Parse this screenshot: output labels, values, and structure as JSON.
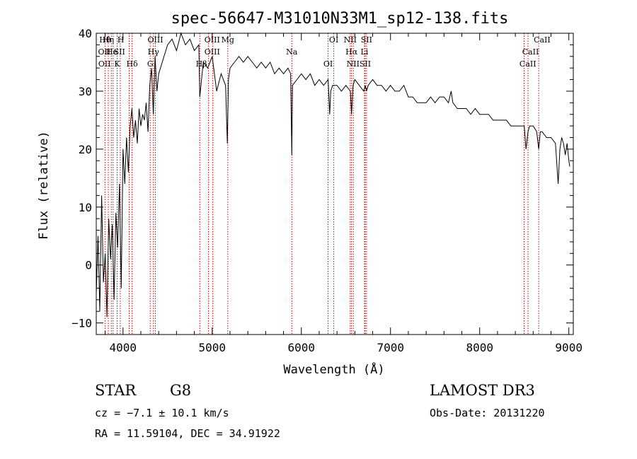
{
  "chart_data": {
    "type": "line",
    "title": "spec-56647-M31010N33M1_sp12-138.fits",
    "xlabel": "Wavelength (Å)",
    "ylabel": "Flux (relative)",
    "xlim": [
      3700,
      9050
    ],
    "ylim": [
      -12,
      40
    ],
    "x_ticks": [
      4000,
      5000,
      6000,
      7000,
      8000,
      9000
    ],
    "x_tick_labels": [
      "4000",
      "5000",
      "6000",
      "7000",
      "8000",
      "9000"
    ],
    "y_ticks": [
      -10,
      0,
      10,
      20,
      30,
      40
    ],
    "y_tick_labels": [
      "−10",
      "0",
      "10",
      "20",
      "30",
      "40"
    ],
    "grid": false,
    "series": [
      {
        "name": "spectrum",
        "x": [
          3700,
          3720,
          3740,
          3760,
          3780,
          3800,
          3820,
          3840,
          3860,
          3880,
          3900,
          3920,
          3940,
          3960,
          3980,
          4000,
          4020,
          4040,
          4060,
          4080,
          4100,
          4120,
          4140,
          4160,
          4180,
          4200,
          4220,
          4240,
          4260,
          4280,
          4300,
          4320,
          4340,
          4360,
          4380,
          4400,
          4420,
          4440,
          4460,
          4480,
          4500,
          4550,
          4600,
          4650,
          4700,
          4750,
          4800,
          4850,
          4861,
          4900,
          4950,
          5000,
          5050,
          5100,
          5150,
          5170,
          5183,
          5200,
          5250,
          5300,
          5350,
          5400,
          5450,
          5500,
          5550,
          5600,
          5650,
          5700,
          5750,
          5800,
          5850,
          5880,
          5893,
          5900,
          5950,
          6000,
          6050,
          6100,
          6150,
          6200,
          6250,
          6300,
          6318,
          6330,
          6350,
          6400,
          6450,
          6500,
          6550,
          6563,
          6580,
          6600,
          6650,
          6700,
          6716,
          6731,
          6750,
          6800,
          6850,
          6900,
          6950,
          7000,
          7050,
          7100,
          7150,
          7200,
          7250,
          7300,
          7350,
          7400,
          7450,
          7500,
          7550,
          7600,
          7650,
          7680,
          7700,
          7750,
          7800,
          7850,
          7900,
          7950,
          8000,
          8050,
          8100,
          8150,
          8200,
          8250,
          8300,
          8350,
          8400,
          8450,
          8500,
          8520,
          8542,
          8560,
          8600,
          8640,
          8662,
          8680,
          8700,
          8750,
          8800,
          8850,
          8880,
          8900,
          8920,
          8940,
          8960,
          8980,
          9000,
          9010
        ],
        "y": [
          -5,
          5,
          -8,
          12,
          -3,
          2,
          -9,
          8,
          1,
          7,
          -6,
          9,
          3,
          14,
          -4,
          20,
          14,
          22,
          16,
          24,
          27,
          22,
          25,
          21,
          27,
          24,
          26,
          25,
          28,
          23,
          31,
          34,
          26,
          36,
          30,
          33,
          34,
          35,
          36,
          37,
          38,
          39,
          37,
          40,
          38,
          39,
          37,
          38,
          29,
          35,
          34,
          36,
          30,
          33,
          31,
          21,
          32,
          34,
          35,
          36,
          35,
          36,
          35,
          34,
          35,
          34,
          35,
          33,
          34,
          33,
          34,
          33,
          19,
          31,
          32,
          33,
          32,
          33,
          31,
          32,
          31,
          32,
          26,
          30,
          31,
          31,
          30,
          31,
          30,
          26,
          31,
          32,
          31,
          30,
          31,
          30,
          31,
          32,
          31,
          31,
          30,
          31,
          30,
          30,
          31,
          29,
          29,
          28,
          28,
          28,
          29,
          28,
          29,
          29,
          28,
          30,
          28,
          27,
          27,
          27,
          26,
          27,
          26,
          26,
          26,
          25,
          25,
          25,
          25,
          24,
          24,
          24,
          24,
          20,
          23,
          24,
          24,
          23,
          20,
          23,
          23,
          22,
          22,
          21,
          14,
          20,
          22,
          21,
          19,
          21,
          18,
          17
        ]
      }
    ],
    "line_markers": [
      {
        "x": 3798,
        "label": "Hθ"
      },
      {
        "x": 3835,
        "label": "Hη"
      },
      {
        "x": 3869,
        "label": "Ne"
      },
      {
        "x": 3889,
        "label": "He"
      },
      {
        "x": 3934,
        "label": "K"
      },
      {
        "x": 3969,
        "label": "H"
      },
      {
        "x": 4102,
        "label": "Hδ"
      },
      {
        "x": 4069,
        "label": "SII"
      },
      {
        "x": 4305,
        "label": "G"
      },
      {
        "x": 4341,
        "label": "Hγ"
      },
      {
        "x": 4363,
        "label": "OIII"
      },
      {
        "x": 4861,
        "label": "Hβ"
      },
      {
        "x": 4959,
        "label": "OIII"
      },
      {
        "x": 5007,
        "label": "OIII"
      },
      {
        "x": 5175,
        "label": "Mg"
      },
      {
        "x": 5893,
        "label": "Na"
      },
      {
        "x": 6300,
        "label": "OI"
      },
      {
        "x": 6364,
        "label": "OI"
      },
      {
        "x": 6548,
        "label": "NII"
      },
      {
        "x": 6563,
        "label": "Hα"
      },
      {
        "x": 6583,
        "label": "NII"
      },
      {
        "x": 6708,
        "label": "Li"
      },
      {
        "x": 6716,
        "label": "SII"
      },
      {
        "x": 6731,
        "label": "SII"
      },
      {
        "x": 8498,
        "label": "CaII"
      },
      {
        "x": 8542,
        "label": "CaII"
      },
      {
        "x": 8662,
        "label": "CaII"
      }
    ],
    "line_labels": [
      {
        "x": 3798,
        "label": "Hθ"
      },
      {
        "x": 3790,
        "label": "OII"
      },
      {
        "x": 3793,
        "label": "OII"
      },
      {
        "x": 3835,
        "label": "Hη"
      },
      {
        "x": 3875,
        "label": "He"
      },
      {
        "x": 3934,
        "label": "K"
      },
      {
        "x": 3974,
        "label": "H"
      },
      {
        "x": 3960,
        "label": "SII"
      },
      {
        "x": 4102,
        "label": "Hδ"
      },
      {
        "x": 4363,
        "label": "OIII"
      },
      {
        "x": 4341,
        "label": "Hγ"
      },
      {
        "x": 4305,
        "label": "G"
      },
      {
        "x": 5000,
        "label": "OIII"
      },
      {
        "x": 5000,
        "label": "OIII"
      },
      {
        "x": 4880,
        "label": "Hβ"
      },
      {
        "x": 5175,
        "label": "Mg"
      },
      {
        "x": 5893,
        "label": "Na"
      },
      {
        "x": 6300,
        "label": "OI"
      },
      {
        "x": 6364,
        "label": "OI"
      },
      {
        "x": 6563,
        "label": "Hα"
      },
      {
        "x": 6716,
        "label": "SII"
      },
      {
        "x": 6548,
        "label": "NII"
      },
      {
        "x": 6708,
        "label": "Li"
      },
      {
        "x": 6580,
        "label": "NII"
      },
      {
        "x": 6731,
        "label": "SII"
      },
      {
        "x": 8570,
        "label": "CaII"
      },
      {
        "x": 8540,
        "label": "CaII"
      },
      {
        "x": 8700,
        "label": "CaII"
      }
    ],
    "colors": {
      "line": "#000000",
      "marker": "#cc0000",
      "axis": "#000000"
    }
  },
  "info": {
    "class": "STAR",
    "subclass": "G8",
    "survey": "LAMOST DR3",
    "cz": "cz = −7.1 ± 10.1 km/s",
    "obs_date": "Obs-Date: 20131220",
    "coords": "RA =  11.59104, DEC =  34.91922"
  }
}
